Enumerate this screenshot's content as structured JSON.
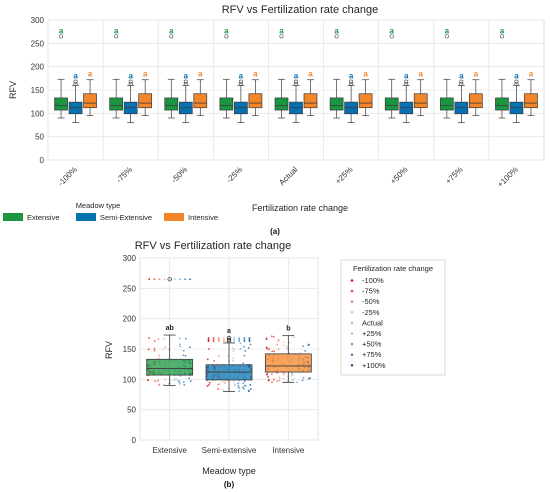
{
  "chart_data": [
    {
      "type": "box",
      "title": "RFV vs Fertilization rate change",
      "xlabel": "Fertilization rate change",
      "ylabel": "RFV",
      "ylim": [
        0,
        300
      ],
      "yticks": [
        "0",
        "50",
        "100",
        "150",
        "200",
        "250",
        "300"
      ],
      "categories": [
        "-100%",
        "-75%",
        "-50%",
        "-25%",
        "Actual",
        "+25%",
        "+50%",
        "+75%",
        "+100%"
      ],
      "legend": {
        "title": "Meadow type",
        "placement": "bottom-left"
      },
      "series": [
        {
          "name": "Extensive",
          "color": "#1a9641",
          "whisker_low": 90,
          "q1": 107,
          "median": 117,
          "q3": 133,
          "whisker_high": 173,
          "outliers": [
            [
              265
            ],
            [
              265
            ],
            [
              265
            ],
            [
              265
            ],
            [
              265
            ],
            [
              265
            ],
            [
              265
            ],
            [
              265
            ],
            [
              265
            ]
          ],
          "letters": [
            "a",
            "a",
            "a",
            "a",
            "a",
            "a",
            "a",
            "a",
            "a"
          ]
        },
        {
          "name": "Semi-Extensive",
          "color": "#0571b0",
          "whisker_low": 80,
          "q1": 99,
          "median": 112,
          "q3": 124,
          "whisker_high": 160,
          "outliers": [
            [
              163,
              168
            ],
            [
              163,
              168
            ],
            [
              163,
              168
            ],
            [
              163,
              168
            ],
            [
              163,
              168
            ],
            [
              163,
              168
            ],
            [
              163,
              168
            ],
            [
              163,
              168
            ],
            [
              163,
              168
            ]
          ],
          "letters": [
            "a",
            "a",
            "a",
            "a",
            "a",
            "a",
            "a",
            "a",
            "a"
          ]
        },
        {
          "name": "Intensive",
          "color": "#f4862a",
          "whisker_low": 95,
          "q1": 112,
          "median": 122,
          "q3": 142,
          "whisker_high": 172,
          "outliers": [
            [],
            [],
            [],
            [],
            [],
            [],
            [],
            [],
            []
          ],
          "letters": [
            "a",
            "a",
            "a",
            "a",
            "a",
            "a",
            "a",
            "a",
            "a"
          ]
        }
      ],
      "subfigure_label": "(a)"
    },
    {
      "type": "box",
      "title": "RFV vs Fertilization rate change",
      "xlabel": "Meadow type",
      "ylabel": "RFV",
      "ylim": [
        0,
        300
      ],
      "yticks": [
        "0",
        "50",
        "100",
        "150",
        "200",
        "250",
        "300"
      ],
      "categories": [
        "Extensive",
        "Semi-extensive",
        "Intensive"
      ],
      "boxes": [
        {
          "color": "#1a9641",
          "whisker_low": 90,
          "q1": 107,
          "median": 118,
          "q3": 133,
          "whisker_high": 173,
          "letter": "ab",
          "outliers": [
            265
          ]
        },
        {
          "color": "#0571b0",
          "whisker_low": 80,
          "q1": 99,
          "median": 112,
          "q3": 124,
          "whisker_high": 160,
          "letter": "a",
          "outliers": [
            163,
            165,
            168
          ]
        },
        {
          "color": "#f4862a",
          "whisker_low": 95,
          "q1": 112,
          "median": 122,
          "q3": 142,
          "whisker_high": 172,
          "letter": "b",
          "outliers": []
        }
      ],
      "legend": {
        "title": "Fertilization rate change",
        "placement": "right",
        "entries": [
          "-100%",
          "-75%",
          "-50%",
          "-25%",
          "Actual",
          "+25%",
          "+50%",
          "+75%",
          "+100%"
        ],
        "colors": [
          "#d7191c",
          "#e5533d",
          "#f08a6a",
          "#f4b8a4",
          "#bdbdbd",
          "#a9cbe4",
          "#6aa7d2",
          "#3f86c0",
          "#1f5f9e"
        ]
      },
      "subfigure_label": "(b)"
    }
  ]
}
